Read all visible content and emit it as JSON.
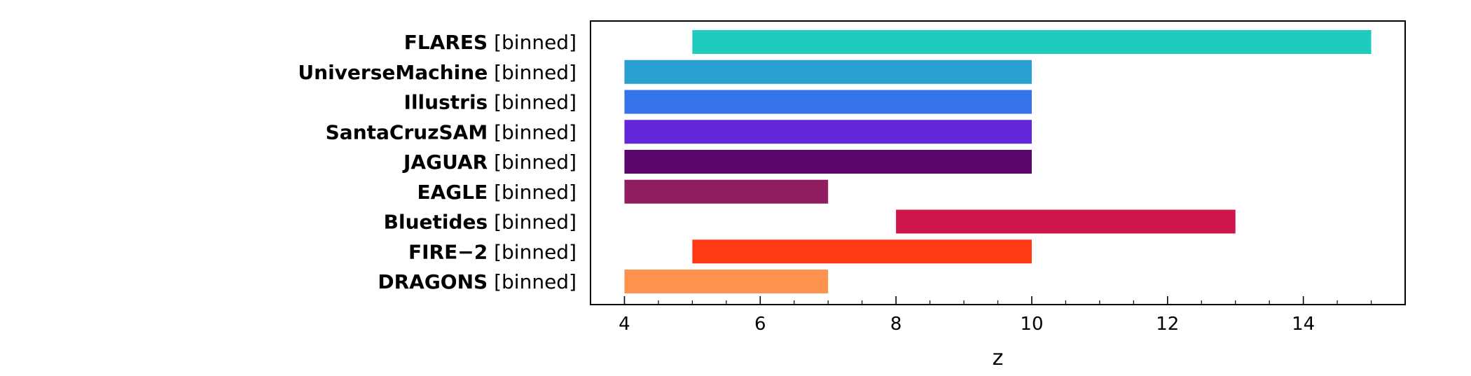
{
  "chart_data": {
    "type": "bar",
    "orientation": "horizontal",
    "xlabel": "z",
    "xlim": [
      3.5,
      15.5
    ],
    "x_ticks": [
      4,
      6,
      8,
      10,
      12,
      14
    ],
    "x_minor_tick_step": 0.5,
    "grid": false,
    "legend": "none",
    "tag_text": "[binned]",
    "rows": [
      {
        "name": "FLARES",
        "start": 5,
        "end": 15,
        "color": "#1fcbbe"
      },
      {
        "name": "UniverseMachine",
        "start": 4,
        "end": 10,
        "color": "#29a0d0"
      },
      {
        "name": "Illustris",
        "start": 4,
        "end": 10,
        "color": "#3573e8"
      },
      {
        "name": "SantaCruzSAM",
        "start": 4,
        "end": 10,
        "color": "#6227d8"
      },
      {
        "name": "JAGUAR",
        "start": 4,
        "end": 10,
        "color": "#5a066c"
      },
      {
        "name": "EAGLE",
        "start": 4,
        "end": 7,
        "color": "#8f1d60"
      },
      {
        "name": "Bluetides",
        "start": 8,
        "end": 13,
        "color": "#cd164c"
      },
      {
        "name": "FIRE−2",
        "start": 5,
        "end": 10,
        "color": "#ff3a15"
      },
      {
        "name": "DRAGONS",
        "start": 4,
        "end": 7,
        "color": "#fd924e"
      }
    ]
  }
}
